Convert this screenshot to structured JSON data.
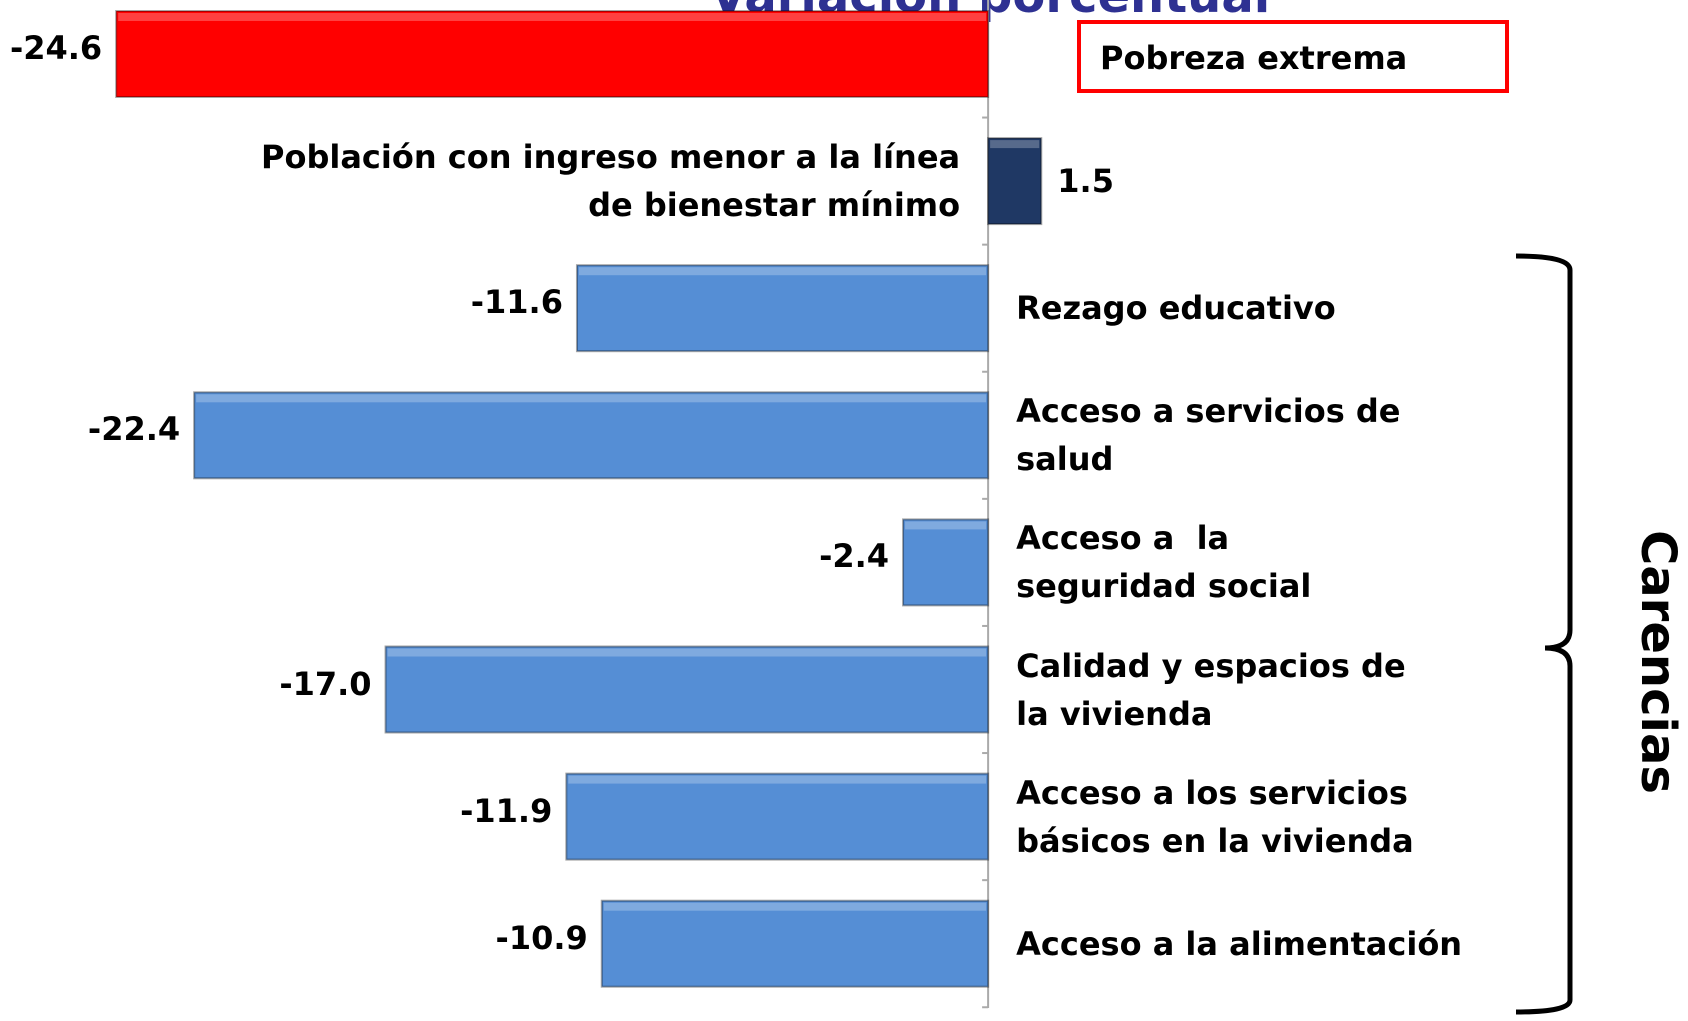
{
  "chart_data": {
    "type": "bar",
    "orientation": "horizontal",
    "title": "Variación porcentual",
    "categories": [
      "Pobreza extrema",
      "Población con ingreso menor a la línea de bienestar mínimo",
      "Rezago educativo",
      "Acceso a servicios de salud",
      "Acceso a  la seguridad social",
      "Calidad y espacios de la vivienda",
      "Acceso a los servicios básicos en la vivienda",
      "Acceso a la alimentación"
    ],
    "values": [
      -24.6,
      1.5,
      -11.6,
      -22.4,
      -2.4,
      -17.0,
      -11.9,
      -10.9
    ],
    "value_labels": [
      "-24.6",
      "1.5",
      "-11.6",
      "-22.4",
      "-2.4",
      "-17.0",
      "-11.9",
      "-10.9"
    ],
    "colors": [
      "#ff0000",
      "#1f3864",
      "#558ed5",
      "#558ed5",
      "#558ed5",
      "#558ed5",
      "#558ed5",
      "#558ed5"
    ],
    "xlim": [
      -25,
      2
    ],
    "annotation": "Carencias"
  }
}
